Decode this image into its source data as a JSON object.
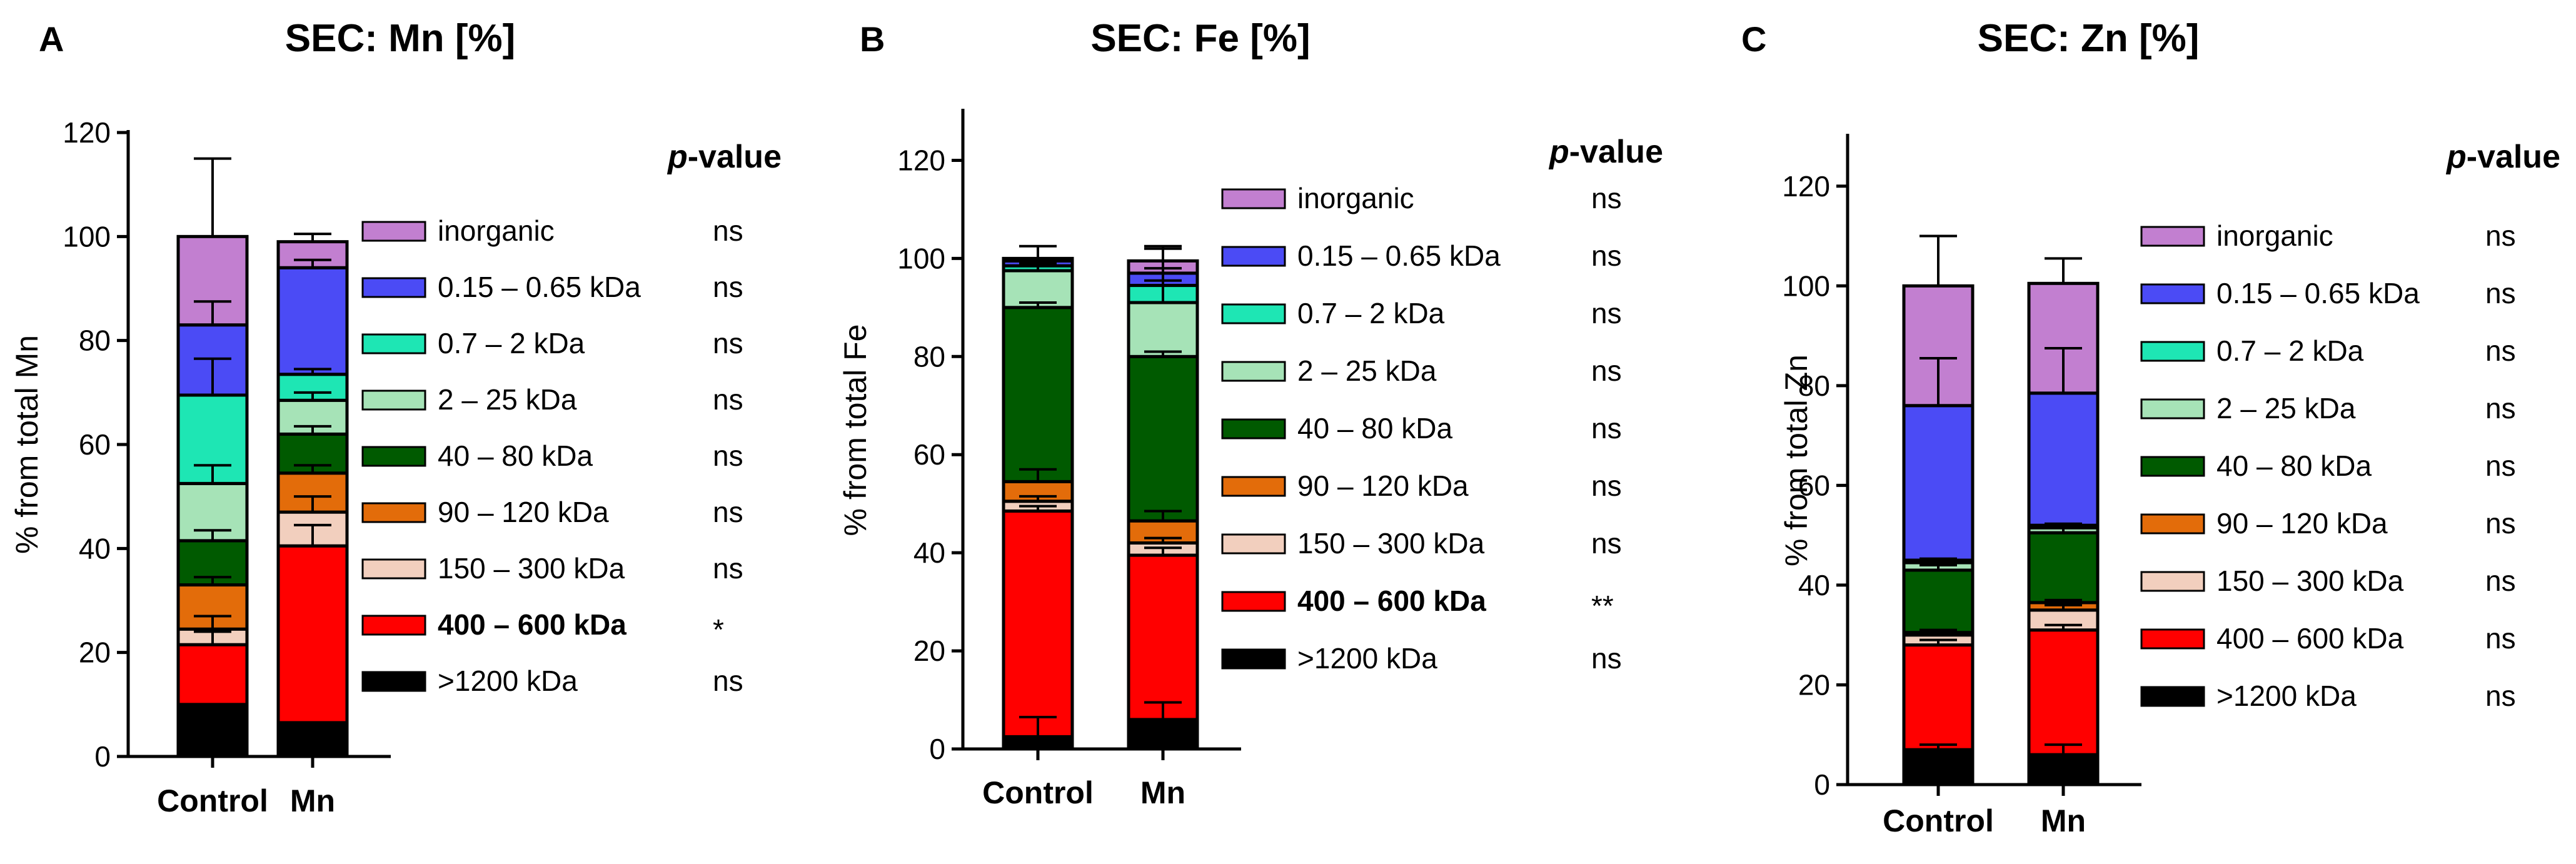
{
  "chart_data": [
    {
      "type": "bar",
      "stacked": true,
      "panel": "A",
      "title": "SEC: Mn [%]",
      "xlabel": "",
      "ylabel": "% from  total Mn",
      "ylim": [
        0,
        120
      ],
      "yticks": [
        0,
        20,
        40,
        60,
        80,
        100,
        120
      ],
      "categories": [
        "Control",
        "Mn"
      ],
      "pvalue_header_pre": "p",
      "pvalue_header_post": "-value",
      "series": [
        {
          "name": ">1200 kDa",
          "color": "#000000",
          "values": [
            10,
            6.5
          ],
          "errors": [
            null,
            null
          ],
          "pvalue": "ns",
          "bold": false
        },
        {
          "name": "400 – 600 kDa",
          "color": "#ff0000",
          "values": [
            11.5,
            34
          ],
          "errors": [
            2.5,
            4
          ],
          "pvalue": "*",
          "bold": true
        },
        {
          "name": "150 – 300 kDa",
          "color": "#f2cfbe",
          "values": [
            3,
            6.5
          ],
          "errors": [
            2.5,
            3
          ],
          "pvalue": "ns",
          "bold": false
        },
        {
          "name": "90 – 120 kDa",
          "color": "#e36c0a",
          "values": [
            8.5,
            7.5
          ],
          "errors": [
            1.5,
            1.5
          ],
          "pvalue": "ns",
          "bold": false
        },
        {
          "name": "40 – 80 kDa",
          "color": "#005a00",
          "values": [
            8.5,
            7.5
          ],
          "errors": [
            2,
            1.5
          ],
          "pvalue": "ns",
          "bold": false
        },
        {
          "name": "2 – 25 kDa",
          "color": "#a6e3b7",
          "values": [
            11,
            6.5
          ],
          "errors": [
            3.5,
            1.5
          ],
          "pvalue": "ns",
          "bold": false
        },
        {
          "name": "0.7 – 2 kDa",
          "color": "#1ee6b4",
          "values": [
            17,
            5
          ],
          "errors": [
            7,
            1
          ],
          "pvalue": "ns",
          "bold": false
        },
        {
          "name": "0.15 – 0.65 kDa",
          "color": "#4b4bf5",
          "values": [
            13.5,
            20.5
          ],
          "errors": [
            4.5,
            1.5
          ],
          "pvalue": "ns",
          "bold": false
        },
        {
          "name": "inorganic",
          "color": "#c27fd0",
          "values": [
            17,
            5
          ],
          "errors": [
            15,
            1.5
          ],
          "pvalue": "ns",
          "bold": false
        }
      ]
    },
    {
      "type": "bar",
      "stacked": true,
      "panel": "B",
      "title": "SEC: Fe [%]",
      "xlabel": "",
      "ylabel": "% from  total Fe",
      "ylim": [
        0,
        130
      ],
      "yticks": [
        0,
        20,
        40,
        60,
        80,
        100,
        120
      ],
      "categories": [
        "Control",
        "Mn"
      ],
      "pvalue_header_pre": "p",
      "pvalue_header_post": "-value",
      "series": [
        {
          "name": ">1200 kDa",
          "color": "#000000",
          "values": [
            2.5,
            6
          ],
          "errors": [
            4,
            3.5
          ],
          "pvalue": "ns",
          "bold": false
        },
        {
          "name": "400 – 600 kDa",
          "color": "#ff0000",
          "values": [
            46,
            33.5
          ],
          "errors": [
            1,
            1.5
          ],
          "pvalue": "**",
          "bold": true
        },
        {
          "name": "150 – 300 kDa",
          "color": "#f2cfbe",
          "values": [
            2,
            2.5
          ],
          "errors": [
            1,
            1
          ],
          "pvalue": "ns",
          "bold": false
        },
        {
          "name": "90 – 120 kDa",
          "color": "#e36c0a",
          "values": [
            4,
            4.5
          ],
          "errors": [
            2.5,
            2
          ],
          "pvalue": "ns",
          "bold": false
        },
        {
          "name": "40 – 80 kDa",
          "color": "#005a00",
          "values": [
            35.5,
            33.5
          ],
          "errors": [
            1,
            1
          ],
          "pvalue": "ns",
          "bold": false
        },
        {
          "name": "2 – 25 kDa",
          "color": "#a6e3b7",
          "values": [
            7.5,
            11
          ],
          "errors": [
            1,
            11
          ],
          "pvalue": "ns",
          "bold": false
        },
        {
          "name": "0.7 – 2 kDa",
          "color": "#1ee6b4",
          "values": [
            1,
            3.5
          ],
          "errors": [
            0.5,
            1
          ],
          "pvalue": "ns",
          "bold": false
        },
        {
          "name": "0.15 – 0.65 kDa",
          "color": "#4b4bf5",
          "values": [
            1,
            2.5
          ],
          "errors": [
            0.5,
            1
          ],
          "pvalue": "ns",
          "bold": false
        },
        {
          "name": "inorganic",
          "color": "#c27fd0",
          "values": [
            0.5,
            2.5
          ],
          "errors": [
            2.5,
            3
          ],
          "pvalue": "ns",
          "bold": false
        }
      ]
    },
    {
      "type": "bar",
      "stacked": true,
      "panel": "C",
      "title": "SEC: Zn [%]",
      "xlabel": "",
      "ylabel": "% from  total Zn",
      "ylim": [
        0,
        130
      ],
      "yticks": [
        0,
        20,
        40,
        60,
        80,
        100,
        120
      ],
      "categories": [
        "Control",
        "Mn"
      ],
      "pvalue_header_pre": "p",
      "pvalue_header_post": "-value",
      "series": [
        {
          "name": ">1200 kDa",
          "color": "#000000",
          "values": [
            7,
            6
          ],
          "errors": [
            1,
            2
          ],
          "pvalue": "ns",
          "bold": false
        },
        {
          "name": "400 – 600 kDa",
          "color": "#ff0000",
          "values": [
            21,
            25
          ],
          "errors": [
            1,
            1
          ],
          "pvalue": "ns",
          "bold": false
        },
        {
          "name": "150 – 300 kDa",
          "color": "#f2cfbe",
          "values": [
            2,
            4
          ],
          "errors": [
            1,
            1
          ],
          "pvalue": "ns",
          "bold": false
        },
        {
          "name": "90 – 120 kDa",
          "color": "#e36c0a",
          "values": [
            0.5,
            1.5
          ],
          "errors": [
            0.5,
            0.5
          ],
          "pvalue": "ns",
          "bold": false
        },
        {
          "name": "40 – 80 kDa",
          "color": "#005a00",
          "values": [
            12.5,
            14
          ],
          "errors": [
            1,
            1.5
          ],
          "pvalue": "ns",
          "bold": false
        },
        {
          "name": "2 – 25 kDa",
          "color": "#a6e3b7",
          "values": [
            1.5,
            1
          ],
          "errors": [
            0.5,
            0.5
          ],
          "pvalue": "ns",
          "bold": false
        },
        {
          "name": "0.7 – 2 kDa",
          "color": "#1ee6b4",
          "values": [
            0.5,
            0.5
          ],
          "errors": [
            0.3,
            0.3
          ],
          "pvalue": "ns",
          "bold": false
        },
        {
          "name": "0.15 – 0.65 kDa",
          "color": "#4b4bf5",
          "values": [
            31,
            26.5
          ],
          "errors": [
            9.5,
            9
          ],
          "pvalue": "ns",
          "bold": false
        },
        {
          "name": "inorganic",
          "color": "#c27fd0",
          "values": [
            24,
            22
          ],
          "errors": [
            10,
            5
          ],
          "pvalue": "ns",
          "bold": false
        }
      ]
    }
  ]
}
